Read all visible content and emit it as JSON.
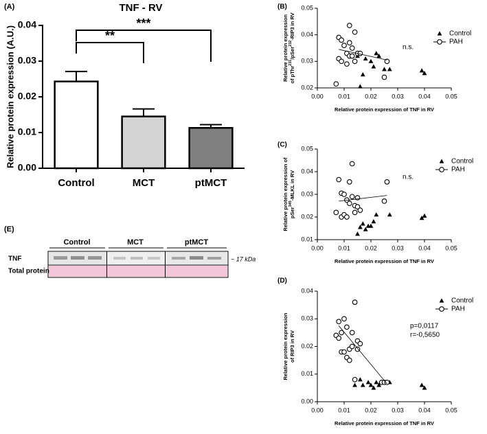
{
  "chart_data": [
    {
      "type": "bar",
      "panel": "(A)",
      "title": "TNF - RV",
      "ylabel": "Relative protein expression (A.U.)",
      "categories": [
        "Control",
        "MCT",
        "ptMCT"
      ],
      "values": [
        0.0243,
        0.0145,
        0.0113
      ],
      "errors": [
        0.0028,
        0.0021,
        0.0009
      ],
      "colors": [
        "#ffffff",
        "#d4d4d4",
        "#808080"
      ],
      "ylim": [
        0,
        0.04
      ],
      "yticks": [
        {
          "value": 0,
          "label": "0.00"
        },
        {
          "value": 0.01,
          "label": "0.01"
        },
        {
          "value": 0.02,
          "label": "0.02"
        },
        {
          "value": 0.03,
          "label": "0.03"
        },
        {
          "value": 0.04,
          "label": "0.04"
        }
      ],
      "annotations": [
        "**",
        "***"
      ]
    },
    {
      "type": "scatter",
      "panel": "(B)",
      "xlabel": "Relative protein expression of TNF in RV",
      "ylabel": [
        [
          "Relative protein expression"
        ],
        [
          "of pThr",
          "231",
          "/pSer",
          "232",
          "-RIP3 in RV"
        ]
      ],
      "annotations": [
        "n.s."
      ],
      "series": [
        {
          "name": "Control",
          "marker": "triangle",
          "x": [
            0.015,
            0.016,
            0.017,
            0.018,
            0.02,
            0.021,
            0.022,
            0.023,
            0.025,
            0.027,
            0.039,
            0.04
          ],
          "values": [
            0.032,
            0.0205,
            0.025,
            0.031,
            0.03,
            0.028,
            0.033,
            0.032,
            0.027,
            0.027,
            0.0265,
            0.0255
          ]
        },
        {
          "name": "PAH",
          "marker": "circle",
          "x": [
            0.007,
            0.008,
            0.008,
            0.009,
            0.009,
            0.01,
            0.011,
            0.011,
            0.012,
            0.012,
            0.012,
            0.013,
            0.013,
            0.014,
            0.014,
            0.015,
            0.016,
            0.025,
            0.026
          ],
          "values": [
            0.0215,
            0.039,
            0.031,
            0.038,
            0.03,
            0.036,
            0.033,
            0.029,
            0.0435,
            0.037,
            0.032,
            0.032,
            0.035,
            0.03,
            0.041,
            0.033,
            0.033,
            0.024,
            0.03
          ]
        }
      ],
      "fit": {
        "x": [
          0.008,
          0.026
        ],
        "values": [
          0.0345,
          0.0305
        ]
      },
      "xlim": [
        0,
        0.05
      ],
      "ylim": [
        0.02,
        0.05
      ],
      "xticks": [
        {
          "value": 0,
          "label": "0.00"
        },
        {
          "value": 0.01,
          "label": "0.01"
        },
        {
          "value": 0.02,
          "label": "0.02"
        },
        {
          "value": 0.03,
          "label": "0.03"
        },
        {
          "value": 0.04,
          "label": "0.04"
        },
        {
          "value": 0.05,
          "label": "0.05"
        }
      ],
      "yticks": [
        {
          "value": 0.02,
          "label": "0.02"
        },
        {
          "value": 0.03,
          "label": "0.03"
        },
        {
          "value": 0.04,
          "label": "0.04"
        },
        {
          "value": 0.05,
          "label": "0.05"
        }
      ]
    },
    {
      "type": "scatter",
      "panel": "(C)",
      "xlabel": "Relative protein expression of TNF in RV",
      "ylabel": [
        [
          "Relative protein expression of"
        ],
        [
          "pSer",
          "345",
          "-MLKL in RV"
        ]
      ],
      "annotations": [
        "n.s."
      ],
      "series": [
        {
          "name": "Control",
          "marker": "triangle",
          "x": [
            0.015,
            0.016,
            0.017,
            0.018,
            0.019,
            0.02,
            0.021,
            0.022,
            0.027,
            0.039,
            0.04
          ],
          "values": [
            0.0125,
            0.0155,
            0.017,
            0.0145,
            0.016,
            0.016,
            0.018,
            0.021,
            0.021,
            0.0195,
            0.0205
          ]
        },
        {
          "name": "PAH",
          "marker": "circle",
          "x": [
            0.007,
            0.008,
            0.009,
            0.009,
            0.01,
            0.01,
            0.011,
            0.011,
            0.012,
            0.012,
            0.013,
            0.013,
            0.014,
            0.014,
            0.015,
            0.015,
            0.016,
            0.025,
            0.026
          ],
          "values": [
            0.022,
            0.0365,
            0.0305,
            0.02,
            0.021,
            0.03,
            0.02,
            0.0275,
            0.0355,
            0.026,
            0.0435,
            0.029,
            0.025,
            0.022,
            0.0285,
            0.0245,
            0.023,
            0.027,
            0.0355
          ]
        }
      ],
      "fit": {
        "x": [
          0.008,
          0.026
        ],
        "values": [
          0.027,
          0.0295
        ]
      },
      "xlim": [
        0,
        0.05
      ],
      "ylim": [
        0.01,
        0.05
      ],
      "xticks": [
        {
          "value": 0,
          "label": "0.00"
        },
        {
          "value": 0.01,
          "label": "0.01"
        },
        {
          "value": 0.02,
          "label": "0.02"
        },
        {
          "value": 0.03,
          "label": "0.03"
        },
        {
          "value": 0.04,
          "label": "0.04"
        },
        {
          "value": 0.05,
          "label": "0.05"
        }
      ],
      "yticks": [
        {
          "value": 0.01,
          "label": "0.01"
        },
        {
          "value": 0.02,
          "label": "0.02"
        },
        {
          "value": 0.03,
          "label": "0.03"
        },
        {
          "value": 0.04,
          "label": "0.04"
        },
        {
          "value": 0.05,
          "label": "0.05"
        }
      ]
    },
    {
      "type": "scatter",
      "panel": "(D)",
      "xlabel": "Relative protein expression of TNF in RV",
      "ylabel": [
        [
          "Relative protein expression"
        ],
        [
          "of RIP3 in RV"
        ]
      ],
      "annotations": [
        "p=0,0117",
        "r=-0,5650"
      ],
      "series": [
        {
          "name": "Control",
          "marker": "triangle",
          "x": [
            0.014,
            0.016,
            0.017,
            0.019,
            0.02,
            0.021,
            0.022,
            0.023,
            0.027,
            0.039,
            0.04
          ],
          "values": [
            0.006,
            0.008,
            0.006,
            0.007,
            0.006,
            0.005,
            0.007,
            0.006,
            0.007,
            0.006,
            0.005
          ]
        },
        {
          "name": "PAH",
          "marker": "circle",
          "x": [
            0.007,
            0.008,
            0.008,
            0.009,
            0.009,
            0.01,
            0.01,
            0.011,
            0.011,
            0.012,
            0.012,
            0.013,
            0.013,
            0.014,
            0.014,
            0.015,
            0.015,
            0.016,
            0.024,
            0.025,
            0.026
          ],
          "values": [
            0.024,
            0.023,
            0.029,
            0.025,
            0.018,
            0.03,
            0.018,
            0.027,
            0.016,
            0.019,
            0.015,
            0.02,
            0.025,
            0.008,
            0.036,
            0.022,
            0.019,
            0.021,
            0.007,
            0.007,
            0.007
          ]
        }
      ],
      "fit": {
        "x": [
          0.008,
          0.026
        ],
        "values": [
          0.0275,
          0.0065
        ]
      },
      "xlim": [
        0,
        0.05
      ],
      "ylim": [
        0,
        0.04
      ],
      "xticks": [
        {
          "value": 0,
          "label": "0.00"
        },
        {
          "value": 0.01,
          "label": "0.01"
        },
        {
          "value": 0.02,
          "label": "0.02"
        },
        {
          "value": 0.03,
          "label": "0.03"
        },
        {
          "value": 0.04,
          "label": "0.04"
        },
        {
          "value": 0.05,
          "label": "0.05"
        }
      ],
      "yticks": [
        {
          "value": 0,
          "label": "0.00"
        },
        {
          "value": 0.01,
          "label": "0.01"
        },
        {
          "value": 0.02,
          "label": "0.02"
        },
        {
          "value": 0.03,
          "label": "0.03"
        },
        {
          "value": 0.04,
          "label": "0.04"
        }
      ]
    }
  ],
  "blot": {
    "panel": "(E)",
    "groups": [
      "Control",
      "MCT",
      "ptMCT"
    ],
    "rows": [
      "TNF",
      "Total protein"
    ],
    "size": "~ 17 kDa"
  }
}
